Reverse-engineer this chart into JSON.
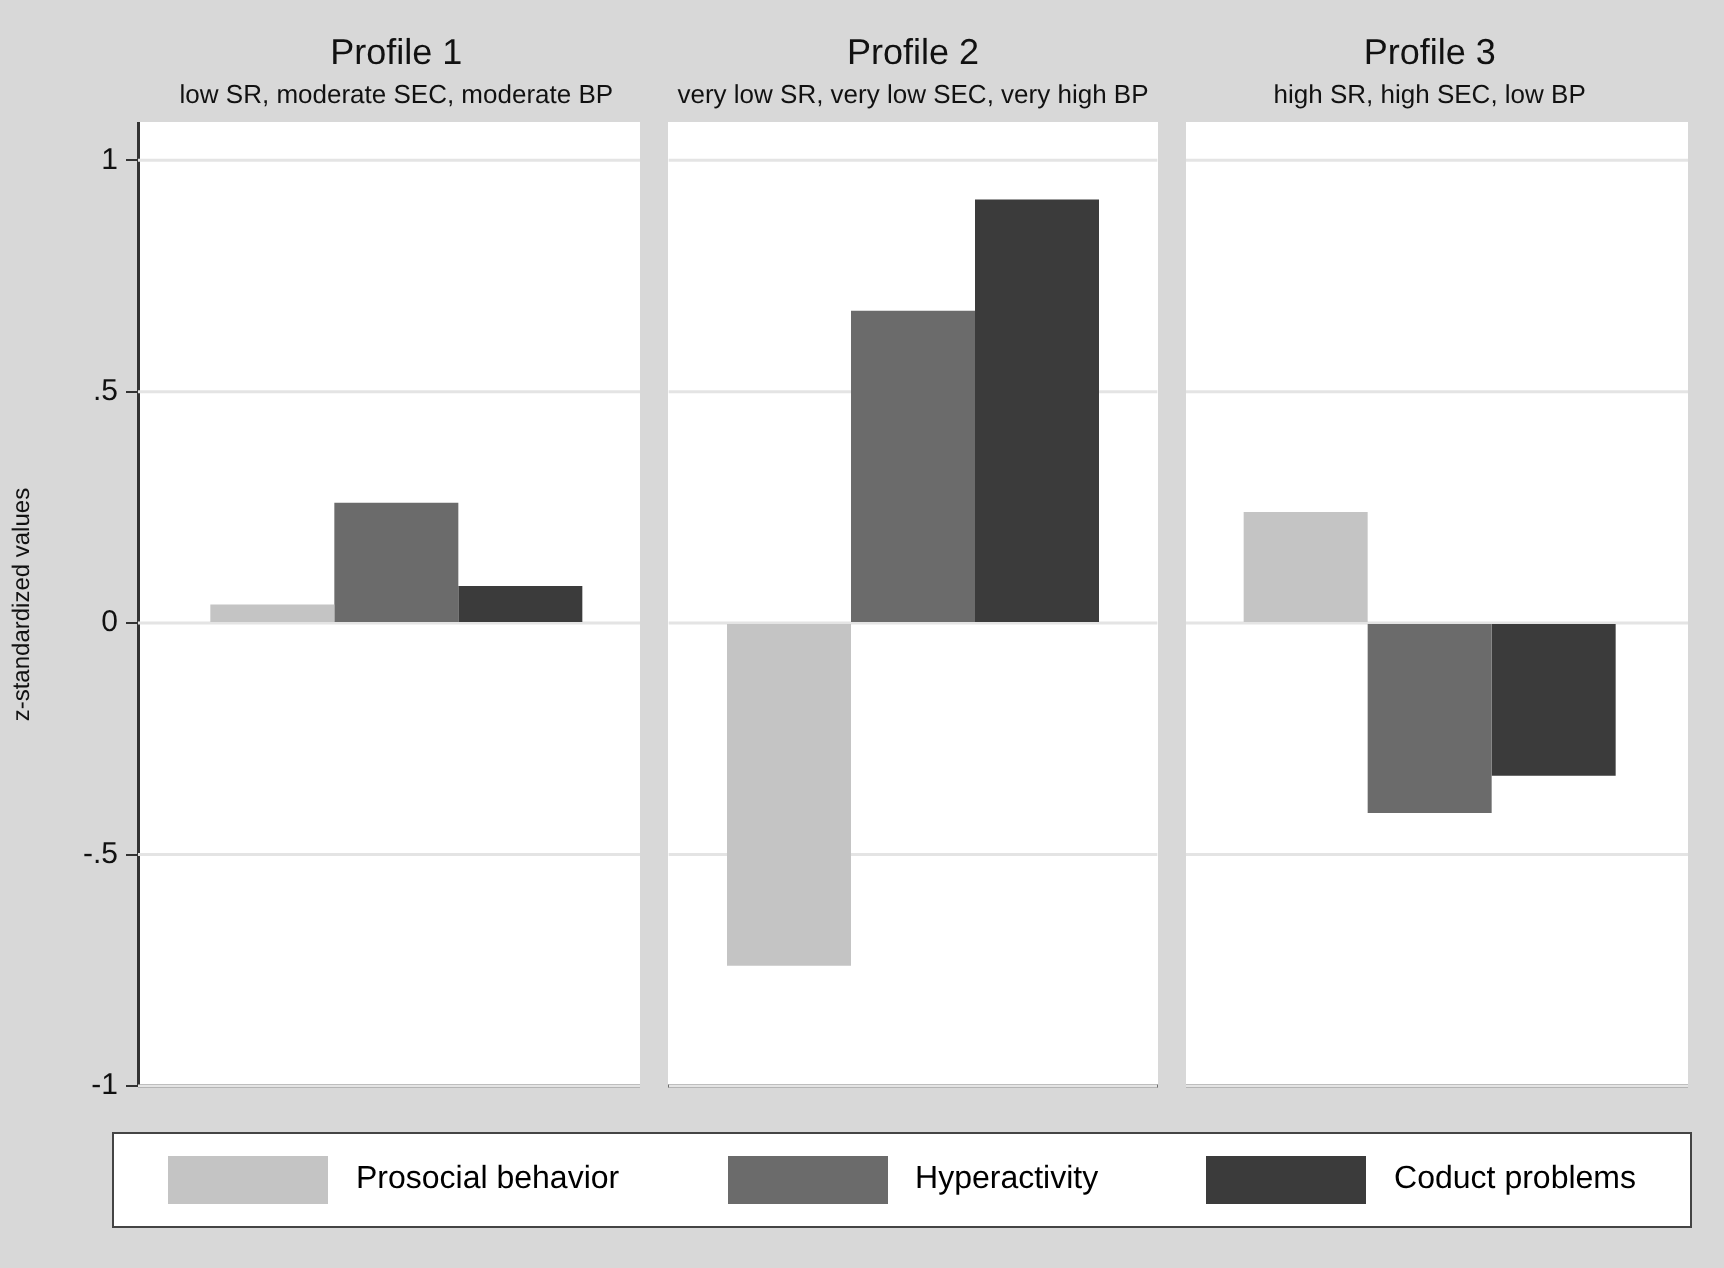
{
  "chart_data": {
    "type": "bar",
    "ylabel": "z-standardized values",
    "categories": [
      "Profile 1",
      "Profile 2",
      "Profile 3"
    ],
    "annotations": [
      "low SR, moderate SEC, moderate BP",
      "very low SR, very low SEC, very high BP",
      "high SR, high SEC, low BP"
    ],
    "series": [
      {
        "name": "Prosocial behavior",
        "color": "#c4c4c4",
        "values": [
          0.04,
          -0.74,
          0.24
        ]
      },
      {
        "name": "Hyperactivity",
        "color": "#6b6b6b",
        "values": [
          0.26,
          0.675,
          -0.41
        ]
      },
      {
        "name": "Coduct problems",
        "color": "#3b3b3b",
        "values": [
          0.08,
          0.915,
          -0.33
        ]
      }
    ],
    "ylim": [
      -1,
      1.08
    ],
    "yticks": [
      {
        "value": -1,
        "label": "-1"
      },
      {
        "value": -0.5,
        "label": "-.5"
      },
      0,
      {
        "value": 0.5,
        "label": ".5"
      },
      1
    ],
    "grid": "y",
    "legend": "bottom"
  }
}
